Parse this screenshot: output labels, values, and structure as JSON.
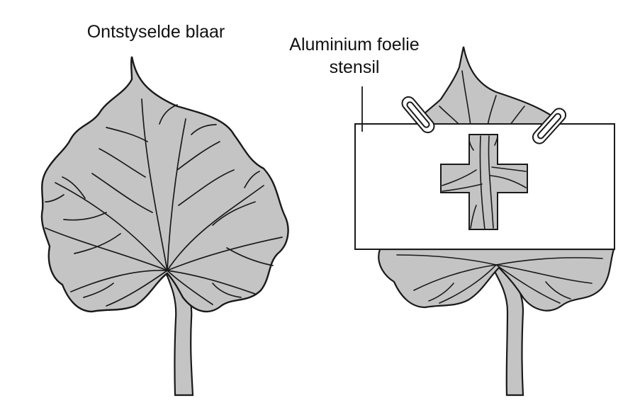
{
  "labels": {
    "untreated_leaf": "Ontstyselde blaar",
    "stencil_line1": "Aluminium foelie",
    "stencil_line2": "stensil"
  },
  "colors": {
    "leaf_fill": "#c4c4c4",
    "outline": "#1a1a1a",
    "foil": "#ffffff"
  },
  "icons": {
    "clip": "paperclip-icon",
    "cross_window": "cross-shape"
  }
}
